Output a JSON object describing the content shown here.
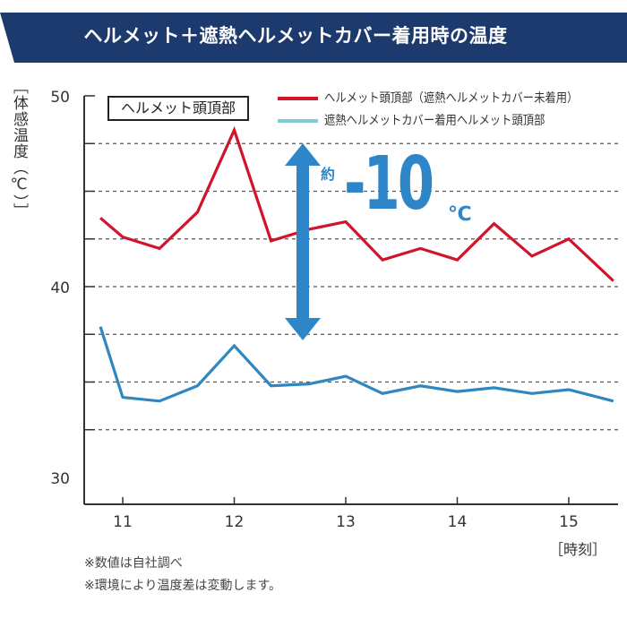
{
  "header": {
    "title": "ヘルメット＋遮熱ヘルメットカバー着用時の温度",
    "color": "#1d3a6e"
  },
  "annotation": {
    "box_label": "ヘルメット頭頂部",
    "prefix": "約",
    "value": "-10",
    "unit": "℃",
    "arrow_color": "#2e86c8"
  },
  "notes": [
    "※数値は自社調べ",
    "※環境により温度差は変動します。"
  ],
  "chart_data": {
    "type": "line",
    "ylabel": "［体感温度（℃）］",
    "xlabel": "［時刻］",
    "ylim": [
      30,
      50
    ],
    "xlim": [
      10.65,
      15.45
    ],
    "yticks": [
      30,
      40,
      50
    ],
    "xticks": [
      11,
      12,
      13,
      14,
      15
    ],
    "grid": "dashed horizontal every 2.5",
    "legend_position": "top-right",
    "x": [
      10.8,
      11,
      11.33,
      11.67,
      12,
      12.33,
      12.67,
      13,
      13.33,
      13.67,
      14,
      14.33,
      14.67,
      15,
      15.4
    ],
    "series": [
      {
        "name": "ヘルメット頭頂部（遮熱ヘルメットカバー未着用）",
        "color": "#d0142c",
        "legend_color": "#d0142c",
        "values": [
          43.6,
          42.6,
          42.0,
          43.9,
          48.2,
          42.4,
          43.0,
          43.4,
          41.4,
          42.0,
          41.4,
          43.3,
          41.6,
          42.5,
          40.3
        ]
      },
      {
        "name": "遮熱ヘルメットカバー着用ヘルメット頭頂部",
        "color": "#2f86c0",
        "legend_color": "#7ecbd3",
        "values": [
          37.9,
          34.2,
          34.0,
          34.8,
          36.9,
          34.8,
          34.9,
          35.3,
          34.4,
          34.8,
          34.5,
          34.7,
          34.4,
          34.6,
          34.0
        ]
      }
    ]
  }
}
